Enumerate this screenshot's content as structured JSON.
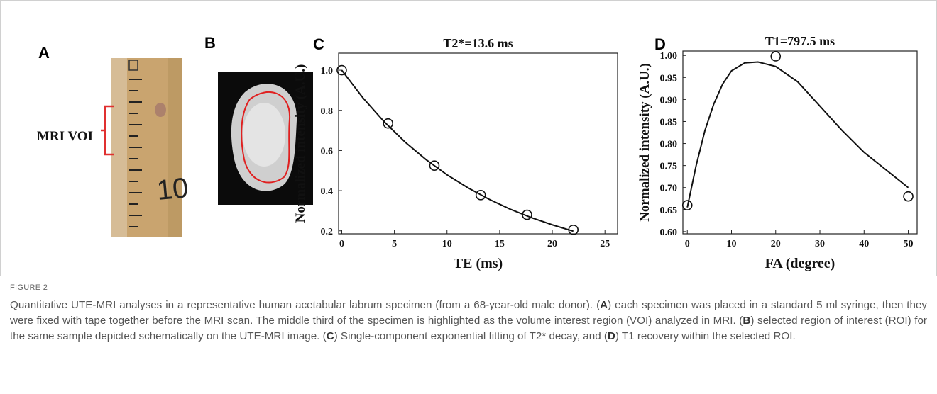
{
  "panels": {
    "a": {
      "letter": "A",
      "label": "MRI VOI"
    },
    "b": {
      "letter": "B"
    },
    "c": {
      "letter": "C"
    },
    "d": {
      "letter": "D"
    }
  },
  "chart_data": [
    {
      "type": "scatter",
      "title": "T2*=13.6 ms",
      "x_label": "TE (ms)",
      "y_label": "Normalized intensity (A.U.)",
      "x": [
        0,
        4.4,
        8.8,
        13.2,
        17.6,
        22
      ],
      "values": [
        1.0,
        0.735,
        0.525,
        0.378,
        0.28,
        0.205
      ],
      "color": "#111111",
      "fit": {
        "x": [
          0,
          2,
          4,
          6,
          8,
          10,
          12,
          14,
          16,
          18,
          20,
          22
        ],
        "values": [
          1.0,
          0.863,
          0.745,
          0.643,
          0.555,
          0.479,
          0.414,
          0.357,
          0.308,
          0.266,
          0.23,
          0.198
        ]
      },
      "xlim": [
        -0.3,
        26.2
      ],
      "ylim": [
        0.185,
        1.085
      ],
      "xticks": [
        0,
        5,
        10,
        15,
        20,
        25
      ],
      "yticks": [
        0.2,
        0.4,
        0.6,
        0.8,
        {
          "value": 1,
          "label": "1.0"
        }
      ]
    },
    {
      "type": "scatter",
      "title": "T1=797.5 ms",
      "x_label": "FA (degree)",
      "y_label": "Normalized intensity (A.U.)",
      "x": [
        0,
        20,
        50
      ],
      "values": [
        0.66,
        0.998,
        0.68
      ],
      "color": "#111111",
      "fit": {
        "x": [
          0,
          2,
          4,
          6,
          8,
          10,
          13,
          16,
          20,
          25,
          30,
          35,
          40,
          45,
          50
        ],
        "values": [
          0.655,
          0.75,
          0.83,
          0.89,
          0.935,
          0.965,
          0.983,
          0.985,
          0.975,
          0.94,
          0.885,
          0.83,
          0.78,
          0.74,
          0.7
        ]
      },
      "xlim": [
        -1,
        52
      ],
      "ylim": [
        0.595,
        1.01
      ],
      "xticks": [
        0,
        10,
        20,
        30,
        40,
        50
      ],
      "yticks": [
        {
          "value": 0.6,
          "label": "0.60"
        },
        0.65,
        {
          "value": 0.7,
          "label": "0.70"
        },
        0.75,
        {
          "value": 0.8,
          "label": "0.80"
        },
        0.85,
        {
          "value": 0.9,
          "label": "0.90"
        },
        0.95,
        {
          "value": 1,
          "label": "1.00"
        }
      ]
    }
  ],
  "caption": {
    "label": "FIGURE 2",
    "parts": [
      "Quantitative UTE-MRI analyses in a representative human acetabular labrum specimen (from a 68-year-old male donor). (",
      "A",
      ") each specimen was placed in a standard 5 ml syringe, then they were fixed with tape together before the MRI scan. The middle third of the specimen is highlighted as the volume interest region (VOI) analyzed in MRI. (",
      "B",
      ") selected region of interest (ROI) for the same sample depicted schematically on the UTE-MRI image. (",
      "C",
      ") Single-component exponential fitting of T2* decay, and (",
      "D",
      ") T1 recovery within the selected ROI."
    ]
  }
}
